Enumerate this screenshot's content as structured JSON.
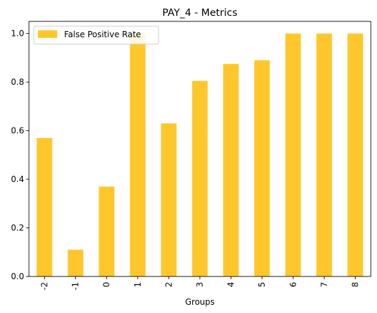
{
  "chart_data": {
    "type": "bar",
    "title": "PAY_4 - Metrics",
    "xlabel": "Groups",
    "ylabel": "",
    "categories": [
      "-2",
      "-1",
      "0",
      "1",
      "2",
      "3",
      "4",
      "5",
      "6",
      "7",
      "8"
    ],
    "series": [
      {
        "name": "False Positive Rate",
        "values": [
          0.57,
          0.11,
          0.37,
          1.0,
          0.63,
          0.805,
          0.875,
          0.89,
          1.0,
          1.0,
          1.0
        ],
        "color": "#FFC72C"
      }
    ],
    "ylim": [
      0,
      1.05
    ],
    "yticks": [
      0.0,
      0.2,
      0.4,
      0.6,
      0.8,
      1.0
    ],
    "ytick_labels": [
      "0.0",
      "0.2",
      "0.4",
      "0.6",
      "0.8",
      "1.0"
    ],
    "grid": false,
    "legend_position": "top-left"
  }
}
